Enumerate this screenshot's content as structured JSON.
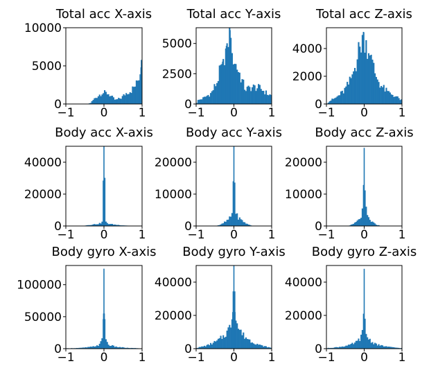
{
  "colors": {
    "bar": "#1f77b4",
    "axes": "#000000"
  },
  "chart_data": [
    {
      "type": "histogram",
      "title": "Total acc X-axis",
      "xlim": [
        -1,
        1
      ],
      "ylim": [
        0,
        10000
      ],
      "xticks": [
        {
          "v": -1,
          "label": "−1"
        },
        {
          "v": 0,
          "label": "0"
        },
        {
          "v": 1,
          "label": "1"
        }
      ],
      "yticks": [
        {
          "v": 0,
          "label": "0"
        },
        {
          "v": 5000,
          "label": "5000"
        },
        {
          "v": 10000,
          "label": "10000"
        }
      ],
      "profile": [
        [
          -0.42,
          0
        ],
        [
          -0.35,
          150
        ],
        [
          -0.25,
          700
        ],
        [
          -0.05,
          1500
        ],
        [
          0.1,
          1400
        ],
        [
          0.3,
          500
        ],
        [
          0.45,
          800
        ],
        [
          0.6,
          1500
        ],
        [
          0.72,
          1800
        ],
        [
          0.85,
          2600
        ],
        [
          0.93,
          3800
        ],
        [
          0.97,
          4800
        ],
        [
          1.0,
          7000
        ]
      ]
    },
    {
      "type": "histogram",
      "title": "Total acc Y-axis",
      "xlim": [
        -1,
        1
      ],
      "ylim": [
        0,
        6300
      ],
      "xticks": [
        {
          "v": -1,
          "label": "−1"
        },
        {
          "v": 0,
          "label": "0"
        },
        {
          "v": 1,
          "label": "1"
        }
      ],
      "yticks": [
        {
          "v": 0,
          "label": "0"
        },
        {
          "v": 2500,
          "label": "2500"
        },
        {
          "v": 5000,
          "label": "5000"
        }
      ],
      "profile": [
        [
          -1.0,
          0
        ],
        [
          -0.95,
          300
        ],
        [
          -0.8,
          500
        ],
        [
          -0.6,
          900
        ],
        [
          -0.45,
          1800
        ],
        [
          -0.3,
          3500
        ],
        [
          -0.2,
          4800
        ],
        [
          -0.1,
          6100
        ],
        [
          -0.05,
          4200
        ],
        [
          0.05,
          3300
        ],
        [
          0.15,
          2500
        ],
        [
          0.3,
          1200
        ],
        [
          0.5,
          1400
        ],
        [
          0.7,
          1300
        ],
        [
          0.9,
          800
        ],
        [
          1.0,
          700
        ]
      ]
    },
    {
      "type": "histogram",
      "title": "Total acc Z-axis",
      "xlim": [
        -1,
        1
      ],
      "ylim": [
        0,
        5500
      ],
      "xticks": [
        {
          "v": -1,
          "label": "−1"
        },
        {
          "v": 0,
          "label": "0"
        },
        {
          "v": 1,
          "label": "1"
        }
      ],
      "yticks": [
        {
          "v": 0,
          "label": "0"
        },
        {
          "v": 2000,
          "label": "2000"
        },
        {
          "v": 4000,
          "label": "4000"
        }
      ],
      "profile": [
        [
          -1.0,
          0
        ],
        [
          -0.9,
          250
        ],
        [
          -0.75,
          450
        ],
        [
          -0.55,
          900
        ],
        [
          -0.4,
          1500
        ],
        [
          -0.25,
          2600
        ],
        [
          -0.12,
          4100
        ],
        [
          -0.02,
          5200
        ],
        [
          0.05,
          4600
        ],
        [
          0.15,
          3500
        ],
        [
          0.3,
          2100
        ],
        [
          0.45,
          1300
        ],
        [
          0.6,
          900
        ],
        [
          0.8,
          600
        ],
        [
          1.0,
          250
        ]
      ]
    },
    {
      "type": "histogram",
      "title": "Body acc X-axis",
      "xlim": [
        -1,
        1
      ],
      "ylim": [
        0,
        50000
      ],
      "xticks": [
        {
          "v": -1,
          "label": "−1"
        },
        {
          "v": 0,
          "label": "0"
        },
        {
          "v": 1,
          "label": "1"
        }
      ],
      "yticks": [
        {
          "v": 0,
          "label": "0"
        },
        {
          "v": 20000,
          "label": "20000"
        },
        {
          "v": 40000,
          "label": "40000"
        }
      ],
      "profile": [
        [
          -0.6,
          0
        ],
        [
          -0.5,
          300
        ],
        [
          -0.3,
          900
        ],
        [
          -0.12,
          1500
        ],
        [
          -0.04,
          2500
        ],
        [
          0.0,
          50000
        ],
        [
          0.04,
          2500
        ],
        [
          0.12,
          1400
        ],
        [
          0.3,
          800
        ],
        [
          0.5,
          400
        ],
        [
          0.7,
          150
        ],
        [
          0.75,
          0
        ]
      ]
    },
    {
      "type": "histogram",
      "title": "Body acc Y-axis",
      "xlim": [
        -1,
        1
      ],
      "ylim": [
        0,
        25000
      ],
      "xticks": [
        {
          "v": -1,
          "label": "−1"
        },
        {
          "v": 0,
          "label": "0"
        },
        {
          "v": 1,
          "label": "1"
        }
      ],
      "yticks": [
        {
          "v": 0,
          "label": "0"
        },
        {
          "v": 10000,
          "label": "10000"
        },
        {
          "v": 20000,
          "label": "20000"
        }
      ],
      "profile": [
        [
          -0.5,
          0
        ],
        [
          -0.35,
          400
        ],
        [
          -0.2,
          1500
        ],
        [
          -0.1,
          2600
        ],
        [
          -0.03,
          4500
        ],
        [
          0.0,
          25000
        ],
        [
          0.03,
          4500
        ],
        [
          0.1,
          2800
        ],
        [
          0.2,
          1800
        ],
        [
          0.35,
          600
        ],
        [
          0.5,
          0
        ]
      ]
    },
    {
      "type": "histogram",
      "title": "Body acc Z-axis",
      "xlim": [
        -1,
        1
      ],
      "ylim": [
        0,
        25000
      ],
      "xticks": [
        {
          "v": -1,
          "label": "−1"
        },
        {
          "v": 0,
          "label": "0"
        },
        {
          "v": 1,
          "label": "1"
        }
      ],
      "yticks": [
        {
          "v": 0,
          "label": "0"
        },
        {
          "v": 10000,
          "label": "10000"
        },
        {
          "v": 20000,
          "label": "20000"
        }
      ],
      "profile": [
        [
          -0.45,
          0
        ],
        [
          -0.3,
          500
        ],
        [
          -0.15,
          1800
        ],
        [
          -0.06,
          3500
        ],
        [
          -0.02,
          7500
        ],
        [
          0.0,
          24500
        ],
        [
          0.02,
          8500
        ],
        [
          0.06,
          3800
        ],
        [
          0.15,
          1800
        ],
        [
          0.3,
          500
        ],
        [
          0.45,
          0
        ]
      ]
    },
    {
      "type": "histogram",
      "title": "Body gyro X-axis",
      "xlim": [
        -1,
        1
      ],
      "ylim": [
        0,
        130000
      ],
      "xticks": [
        {
          "v": -1,
          "label": "−1"
        },
        {
          "v": 0,
          "label": "0"
        },
        {
          "v": 1,
          "label": "1"
        }
      ],
      "yticks": [
        {
          "v": 0,
          "label": "0"
        },
        {
          "v": 50000,
          "label": "50000"
        },
        {
          "v": 100000,
          "label": "100000"
        }
      ],
      "profile": [
        [
          -1.0,
          500
        ],
        [
          -0.6,
          1200
        ],
        [
          -0.3,
          3000
        ],
        [
          -0.12,
          6000
        ],
        [
          -0.04,
          15000
        ],
        [
          -0.01,
          55000
        ],
        [
          0.0,
          125000
        ],
        [
          0.01,
          55000
        ],
        [
          0.04,
          15000
        ],
        [
          0.12,
          6000
        ],
        [
          0.3,
          3000
        ],
        [
          0.6,
          1200
        ],
        [
          1.0,
          500
        ]
      ]
    },
    {
      "type": "histogram",
      "title": "Body gyro Y-axis",
      "xlim": [
        -1,
        1
      ],
      "ylim": [
        0,
        50000
      ],
      "xticks": [
        {
          "v": -1,
          "label": "−1"
        },
        {
          "v": 0,
          "label": "0"
        },
        {
          "v": 1,
          "label": "1"
        }
      ],
      "yticks": [
        {
          "v": 0,
          "label": "0"
        },
        {
          "v": 20000,
          "label": "20000"
        },
        {
          "v": 40000,
          "label": "40000"
        }
      ],
      "profile": [
        [
          -1.0,
          400
        ],
        [
          -0.7,
          2000
        ],
        [
          -0.45,
          4500
        ],
        [
          -0.25,
          8000
        ],
        [
          -0.1,
          13000
        ],
        [
          -0.03,
          22000
        ],
        [
          0.0,
          50000
        ],
        [
          0.03,
          22000
        ],
        [
          0.1,
          13000
        ],
        [
          0.25,
          8000
        ],
        [
          0.45,
          4500
        ],
        [
          0.7,
          2000
        ],
        [
          1.0,
          400
        ]
      ]
    },
    {
      "type": "histogram",
      "title": "Body gyro Z-axis",
      "xlim": [
        -1,
        1
      ],
      "ylim": [
        0,
        50000
      ],
      "xticks": [
        {
          "v": -1,
          "label": "−1"
        },
        {
          "v": 0,
          "label": "0"
        },
        {
          "v": 1,
          "label": "1"
        }
      ],
      "yticks": [
        {
          "v": 0,
          "label": "0"
        },
        {
          "v": 20000,
          "label": "20000"
        },
        {
          "v": 40000,
          "label": "40000"
        }
      ],
      "profile": [
        [
          -1.0,
          300
        ],
        [
          -0.7,
          900
        ],
        [
          -0.4,
          2000
        ],
        [
          -0.2,
          4000
        ],
        [
          -0.08,
          7000
        ],
        [
          -0.02,
          12000
        ],
        [
          0.0,
          48000
        ],
        [
          0.02,
          12000
        ],
        [
          0.08,
          7000
        ],
        [
          0.2,
          4000
        ],
        [
          0.4,
          2000
        ],
        [
          0.7,
          900
        ],
        [
          1.0,
          300
        ]
      ]
    }
  ]
}
